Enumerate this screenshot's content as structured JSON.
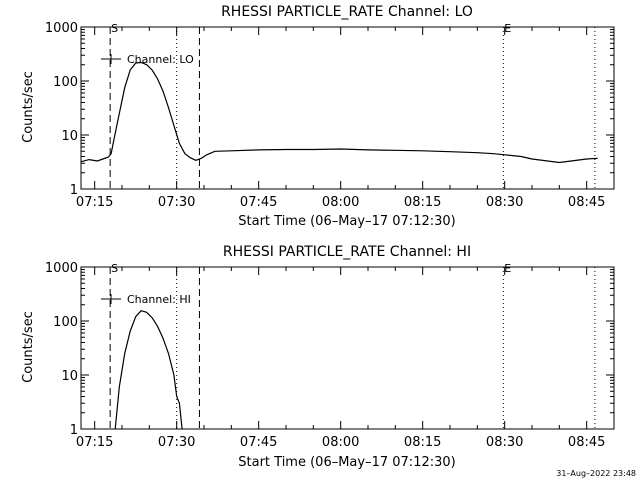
{
  "chart_data": [
    {
      "type": "line",
      "title": "RHESSI PARTICLE_RATE Channel: LO",
      "xlabel": "Start Time (06–May–17 07:12:30)",
      "ylabel": "Counts/sec",
      "y_scale": "log",
      "ylim": [
        1,
        1000
      ],
      "xlim": [
        "07:12:30",
        "08:50:00"
      ],
      "x_ticks": [
        "07:15",
        "07:30",
        "07:45",
        "08:00",
        "08:15",
        "08:30",
        "08:45"
      ],
      "y_ticks": [
        "1",
        "10",
        "100",
        "1000"
      ],
      "legend": "Channel: LO",
      "legend_position": "top-left",
      "markers": [
        {
          "label": "S",
          "time": "07:17:50",
          "style": "dashed"
        },
        {
          "label": "",
          "time": "07:30:00",
          "style": "dotted"
        },
        {
          "label": "",
          "time": "07:34:10",
          "style": "dashed"
        },
        {
          "label": "E",
          "time": "08:29:45",
          "style": "dotted"
        },
        {
          "label": "",
          "time": "08:46:30",
          "style": "dotted"
        }
      ],
      "series": [
        {
          "x": [
            "07:12:30",
            "07:14:00",
            "07:15:30",
            "07:16:30",
            "07:17:30",
            "07:18:00",
            "07:18:30",
            "07:19:30",
            "07:20:30",
            "07:21:30",
            "07:22:30",
            "07:23:30",
            "07:24:30",
            "07:25:30",
            "07:26:30",
            "07:27:30",
            "07:28:30",
            "07:29:30",
            "07:30:30",
            "07:31:30",
            "07:32:30",
            "07:33:30",
            "07:34:30",
            "07:35:30",
            "07:37:00",
            "07:40:00",
            "07:45:00",
            "07:50:00",
            "07:55:00",
            "08:00:00",
            "08:05:00",
            "08:10:00",
            "08:15:00",
            "08:20:00",
            "08:25:00",
            "08:28:00",
            "08:30:00",
            "08:33:00",
            "08:35:00",
            "08:40:00",
            "08:45:00",
            "08:47:00"
          ],
          "y": [
            3.2,
            3.5,
            3.3,
            3.6,
            3.9,
            4.5,
            8,
            25,
            75,
            160,
            215,
            220,
            200,
            160,
            110,
            65,
            32,
            15,
            7,
            4.5,
            3.8,
            3.4,
            3.7,
            4.3,
            5,
            5.1,
            5.3,
            5.4,
            5.4,
            5.5,
            5.3,
            5.2,
            5.1,
            4.9,
            4.7,
            4.5,
            4.3,
            4.0,
            3.6,
            3.1,
            3.6,
            3.7
          ]
        }
      ]
    },
    {
      "type": "line",
      "title": "RHESSI PARTICLE_RATE Channel: HI",
      "xlabel": "Start Time (06–May–17 07:12:30)",
      "ylabel": "Counts/sec",
      "y_scale": "log",
      "ylim": [
        1,
        1000
      ],
      "xlim": [
        "07:12:30",
        "08:50:00"
      ],
      "x_ticks": [
        "07:15",
        "07:30",
        "07:45",
        "08:00",
        "08:15",
        "08:30",
        "08:45"
      ],
      "y_ticks": [
        "1",
        "10",
        "100",
        "1000"
      ],
      "legend": "Channel: HI",
      "legend_position": "top-left",
      "markers": [
        {
          "label": "S",
          "time": "07:17:50",
          "style": "dashed"
        },
        {
          "label": "",
          "time": "07:30:00",
          "style": "dotted"
        },
        {
          "label": "",
          "time": "07:34:10",
          "style": "dashed"
        },
        {
          "label": "E",
          "time": "08:29:45",
          "style": "dotted"
        },
        {
          "label": "",
          "time": "08:46:30",
          "style": "dotted"
        }
      ],
      "series": [
        {
          "x": [
            "07:18:45",
            "07:19:30",
            "07:20:30",
            "07:21:30",
            "07:22:30",
            "07:23:30",
            "07:24:30",
            "07:25:30",
            "07:26:30",
            "07:27:30",
            "07:28:30",
            "07:29:30",
            "07:30:00",
            "07:30:30",
            "07:31:00"
          ],
          "y": [
            1,
            6,
            25,
            65,
            120,
            155,
            145,
            115,
            80,
            48,
            25,
            10,
            4,
            3,
            1
          ]
        }
      ]
    }
  ],
  "footer": {
    "timestamp": "31–Aug–2022 23:48"
  }
}
